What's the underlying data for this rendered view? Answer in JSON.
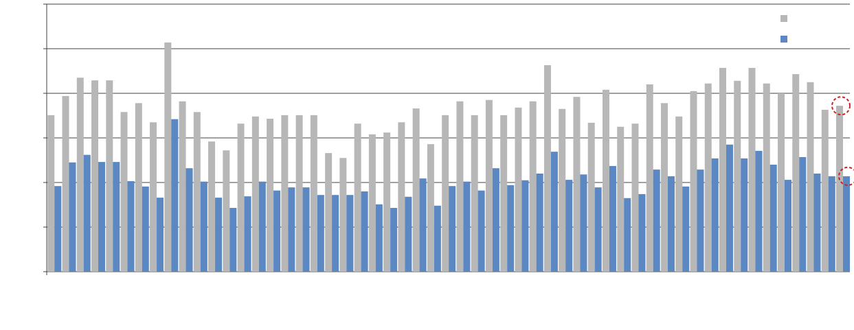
{
  "chart_data": {
    "type": "bar",
    "categories": [
      null,
      null,
      null,
      null,
      null,
      null,
      null,
      null,
      null,
      null,
      null,
      null,
      null,
      null,
      null,
      null,
      null,
      null,
      null,
      null,
      null,
      null,
      null,
      null,
      null,
      null,
      null,
      null,
      null,
      null,
      null,
      null,
      null,
      null,
      null,
      null,
      null,
      null,
      null,
      null,
      null,
      null,
      null,
      null,
      null,
      null,
      null,
      null,
      null,
      null,
      null,
      null,
      null,
      null,
      null
    ],
    "series": [
      {
        "color": "#b7b7b7",
        "values": [
          3.51,
          3.94,
          4.35,
          4.29,
          4.29,
          3.58,
          3.78,
          3.35,
          5.14,
          3.82,
          3.58,
          2.92,
          2.72,
          3.32,
          3.48,
          3.43,
          3.51,
          3.51,
          3.51,
          2.66,
          2.55,
          3.32,
          3.08,
          3.12,
          3.35,
          3.66,
          2.86,
          3.51,
          3.82,
          3.51,
          3.85,
          3.51,
          3.68,
          3.82,
          4.63,
          3.65,
          3.92,
          3.34,
          4.08,
          3.25,
          3.32,
          4.2,
          3.78,
          3.48,
          4.05,
          4.22,
          4.57,
          4.28,
          4.57,
          4.22,
          4.0,
          4.43,
          4.25,
          3.63,
          3.72
        ]
      },
      {
        "color": "#5b87c2",
        "values": [
          1.92,
          2.45,
          2.62,
          2.46,
          2.46,
          2.03,
          1.91,
          1.66,
          3.42,
          2.32,
          2.02,
          1.66,
          1.43,
          1.69,
          2.02,
          1.82,
          1.89,
          1.89,
          1.72,
          1.72,
          1.72,
          1.8,
          1.51,
          1.43,
          1.68,
          2.09,
          1.48,
          1.92,
          2.02,
          1.82,
          2.32,
          1.94,
          2.05,
          2.2,
          2.69,
          2.06,
          2.18,
          1.89,
          2.37,
          1.65,
          1.74,
          2.29,
          2.14,
          1.91,
          2.29,
          2.54,
          2.85,
          2.54,
          2.71,
          2.4,
          2.06,
          2.57,
          2.2,
          2.14,
          2.14
        ]
      }
    ],
    "ylim": [
      0,
      6
    ],
    "yticks": [
      0,
      1,
      2,
      3,
      4,
      5,
      6
    ],
    "grid": true,
    "legend": "top-right"
  }
}
